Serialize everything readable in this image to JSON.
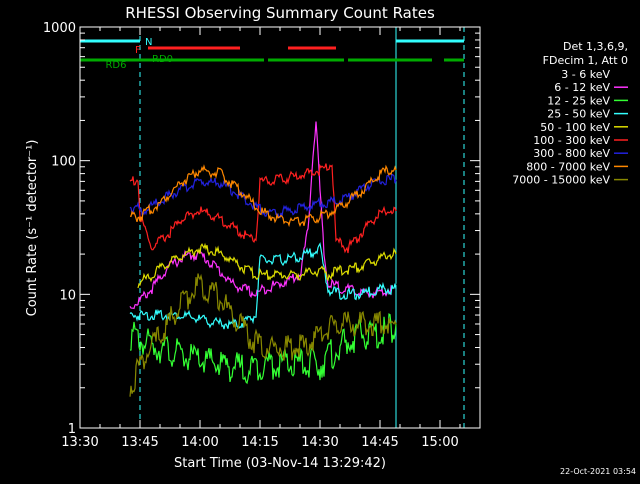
{
  "chart_data": {
    "type": "line",
    "title": "RHESSI Observing Summary Count Rates",
    "xlabel": "Start Time (03-Nov-14 13:29:42)",
    "ylabel": "Count Rate (s⁻¹ detector⁻¹)",
    "yscale": "log",
    "ylim": [
      1,
      1000
    ],
    "xlim": [
      0,
      100
    ],
    "x_ticks": [
      {
        "t": 0,
        "label": "13:30"
      },
      {
        "t": 15,
        "label": "13:45"
      },
      {
        "t": 30,
        "label": "14:00"
      },
      {
        "t": 45,
        "label": "14:15"
      },
      {
        "t": 60,
        "label": "14:30"
      },
      {
        "t": 75,
        "label": "14:45"
      },
      {
        "t": 90,
        "label": "15:00"
      }
    ],
    "y_ticks": [
      {
        "v": 1,
        "label": "1"
      },
      {
        "v": 10,
        "label": "10"
      },
      {
        "v": 100,
        "label": "100"
      },
      {
        "v": 1000,
        "label": "1000"
      }
    ],
    "legend_header": [
      "Det 1,3,6,9,",
      "FDecim 1, Att 0"
    ],
    "series": [
      {
        "name": "3 - 6 keV",
        "color": "#000000",
        "values": [
          [
            12.5,
            40
          ],
          [
            14,
            42
          ],
          [
            16,
            36
          ],
          [
            20,
            38
          ],
          [
            25,
            35
          ],
          [
            30,
            32
          ],
          [
            35,
            26
          ],
          [
            40,
            20
          ],
          [
            44,
            17
          ],
          [
            45,
            50
          ],
          [
            48,
            54
          ],
          [
            52,
            60
          ],
          [
            55,
            80
          ],
          [
            56,
            120
          ],
          [
            57,
            60
          ],
          [
            58,
            40
          ],
          [
            60,
            130
          ],
          [
            61,
            55
          ],
          [
            63,
            35
          ],
          [
            65,
            20
          ],
          [
            68,
            15
          ],
          [
            72,
            14
          ],
          [
            76,
            14
          ],
          [
            78,
            12
          ],
          [
            79,
            12
          ]
        ]
      },
      {
        "name": "6 - 12 keV",
        "color": "#ff33ff",
        "values": [
          [
            12.5,
            8
          ],
          [
            15,
            9
          ],
          [
            18,
            11
          ],
          [
            22,
            16
          ],
          [
            26,
            19
          ],
          [
            30,
            20
          ],
          [
            34,
            16
          ],
          [
            38,
            12
          ],
          [
            44,
            10
          ],
          [
            46,
            11
          ],
          [
            50,
            12
          ],
          [
            55,
            14
          ],
          [
            57,
            30
          ],
          [
            58,
            90
          ],
          [
            59,
            200
          ],
          [
            60,
            60
          ],
          [
            61,
            20
          ],
          [
            62,
            12
          ],
          [
            66,
            11
          ],
          [
            72,
            10
          ],
          [
            78,
            11
          ]
        ]
      },
      {
        "name": "12 - 25 keV",
        "color": "#33ff33",
        "values": [
          [
            12.5,
            5
          ],
          [
            15,
            4.5
          ],
          [
            20,
            4
          ],
          [
            25,
            3.5
          ],
          [
            30,
            3.2
          ],
          [
            35,
            3
          ],
          [
            40,
            2.8
          ],
          [
            44,
            2.8
          ],
          [
            45,
            3
          ],
          [
            50,
            3
          ],
          [
            55,
            3
          ],
          [
            60,
            3
          ],
          [
            65,
            4
          ],
          [
            70,
            5
          ],
          [
            75,
            5
          ],
          [
            79,
            6
          ]
        ]
      },
      {
        "name": "25 - 50 keV",
        "color": "#33ffff",
        "values": [
          [
            12.5,
            7
          ],
          [
            15,
            7
          ],
          [
            20,
            7
          ],
          [
            25,
            7
          ],
          [
            30,
            6.5
          ],
          [
            35,
            6
          ],
          [
            40,
            6
          ],
          [
            44,
            7
          ],
          [
            45,
            18
          ],
          [
            50,
            18
          ],
          [
            55,
            19
          ],
          [
            60,
            22
          ],
          [
            62,
            11
          ],
          [
            65,
            10
          ],
          [
            70,
            10
          ],
          [
            75,
            11
          ],
          [
            79,
            11
          ]
        ]
      },
      {
        "name": "50 - 100 keV",
        "color": "#dddd00",
        "values": [
          [
            14.5,
            12
          ],
          [
            18,
            14
          ],
          [
            22,
            17
          ],
          [
            26,
            20
          ],
          [
            30,
            22
          ],
          [
            34,
            21
          ],
          [
            38,
            18
          ],
          [
            42,
            15
          ],
          [
            44,
            14
          ],
          [
            46,
            14
          ],
          [
            50,
            14
          ],
          [
            55,
            14
          ],
          [
            60,
            15
          ],
          [
            62,
            14
          ],
          [
            65,
            15
          ],
          [
            70,
            16
          ],
          [
            74,
            18
          ],
          [
            77,
            20
          ],
          [
            79,
            20
          ]
        ]
      },
      {
        "name": "100 - 300 keV",
        "color": "#ff2020",
        "values": [
          [
            12.5,
            70
          ],
          [
            14.5,
            72
          ],
          [
            15,
            38
          ],
          [
            18,
            22
          ],
          [
            22,
            28
          ],
          [
            26,
            38
          ],
          [
            30,
            42
          ],
          [
            34,
            38
          ],
          [
            38,
            32
          ],
          [
            42,
            27
          ],
          [
            44,
            26
          ],
          [
            45,
            70
          ],
          [
            50,
            72
          ],
          [
            55,
            78
          ],
          [
            60,
            85
          ],
          [
            63,
            95
          ],
          [
            64,
            25
          ],
          [
            67,
            22
          ],
          [
            70,
            28
          ],
          [
            74,
            38
          ],
          [
            77,
            42
          ],
          [
            79,
            42
          ]
        ]
      },
      {
        "name": "300 - 800 keV",
        "color": "#2222dd",
        "values": [
          [
            12.5,
            45
          ],
          [
            14.5,
            45
          ],
          [
            15,
            40
          ],
          [
            20,
            50
          ],
          [
            25,
            60
          ],
          [
            30,
            70
          ],
          [
            35,
            68
          ],
          [
            40,
            55
          ],
          [
            44,
            45
          ],
          [
            48,
            40
          ],
          [
            52,
            42
          ],
          [
            56,
            45
          ],
          [
            60,
            48
          ],
          [
            64,
            50
          ],
          [
            68,
            55
          ],
          [
            72,
            65
          ],
          [
            76,
            72
          ],
          [
            79,
            72
          ]
        ]
      },
      {
        "name": "800 - 7000 keV",
        "color": "#ff8800",
        "values": [
          [
            12.5,
            38
          ],
          [
            15,
            38
          ],
          [
            20,
            48
          ],
          [
            25,
            68
          ],
          [
            30,
            85
          ],
          [
            35,
            80
          ],
          [
            40,
            60
          ],
          [
            45,
            42
          ],
          [
            50,
            36
          ],
          [
            55,
            35
          ],
          [
            60,
            38
          ],
          [
            65,
            45
          ],
          [
            70,
            58
          ],
          [
            74,
            75
          ],
          [
            77,
            85
          ],
          [
            79,
            85
          ]
        ]
      },
      {
        "name": "7000 - 15000 keV",
        "color": "#888800",
        "values": [
          [
            12.5,
            2
          ],
          [
            15,
            3
          ],
          [
            18,
            4
          ],
          [
            22,
            6
          ],
          [
            26,
            9
          ],
          [
            30,
            12
          ],
          [
            34,
            10
          ],
          [
            38,
            7
          ],
          [
            42,
            5
          ],
          [
            45,
            4
          ],
          [
            48,
            4
          ],
          [
            52,
            4
          ],
          [
            56,
            4
          ],
          [
            60,
            5
          ],
          [
            64,
            6
          ],
          [
            68,
            6
          ],
          [
            72,
            6
          ],
          [
            76,
            6
          ],
          [
            79,
            6
          ]
        ]
      }
    ],
    "top_bars": {
      "N": {
        "label": "N",
        "color": "#33ffff",
        "segments": [
          [
            0,
            15
          ],
          [
            79,
            96
          ]
        ]
      },
      "F": {
        "label": "F",
        "color": "#ff2020",
        "segments": [
          [
            17,
            40
          ],
          [
            52,
            64
          ]
        ]
      },
      "RD0": {
        "label": "RD0",
        "color": "#00aa00",
        "segments": []
      },
      "RD6": {
        "label": "RD6",
        "color": "#00aa00",
        "segments": [
          [
            0,
            15
          ],
          [
            15,
            46
          ],
          [
            47,
            66
          ],
          [
            67,
            88
          ],
          [
            91,
            96
          ]
        ]
      }
    },
    "saa_lines": [
      15,
      79,
      96
    ],
    "cyan_solid_lines": [
      0,
      79
    ]
  },
  "timestamp": "22-Oct-2021 03:54"
}
